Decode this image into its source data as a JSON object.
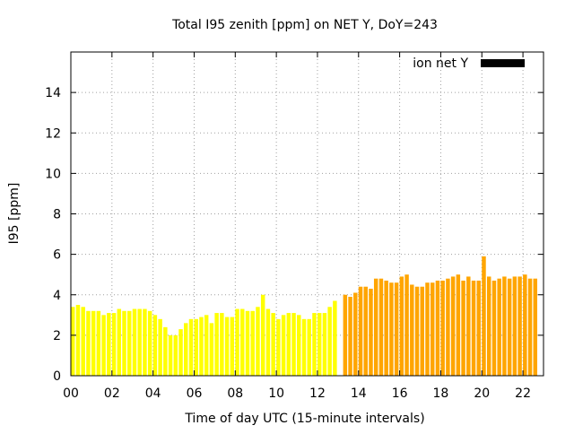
{
  "chart_data": {
    "type": "bar",
    "title": "Total I95 zenith [ppm] on NET Y, DoY=243",
    "xlabel": "Time of day UTC (15-minute intervals)",
    "ylabel": "I95 [ppm]",
    "legend": {
      "label": "ion net Y",
      "color": "#000000",
      "placement": "top-right"
    },
    "grid": true,
    "xlim": [
      0,
      23
    ],
    "ylim": [
      0,
      16
    ],
    "x_ticks": [
      "00",
      "02",
      "04",
      "06",
      "08",
      "10",
      "12",
      "14",
      "16",
      "18",
      "20",
      "22"
    ],
    "y_ticks": [
      "0",
      "2",
      "4",
      "6",
      "8",
      "10",
      "12",
      "14"
    ],
    "interval_hours": 0.25,
    "series": [
      {
        "color": "#ffff00",
        "x_start": 0,
        "values": [
          3.4,
          3.5,
          3.4,
          3.2,
          3.2,
          3.2,
          3.0,
          3.1,
          3.1,
          3.3,
          3.2,
          3.2,
          3.3,
          3.3,
          3.3,
          3.2,
          3.0,
          2.8,
          2.4,
          2.0,
          2.0,
          2.3,
          2.6,
          2.8,
          2.8,
          2.9,
          3.0,
          2.6,
          3.1,
          3.1,
          2.9,
          2.9,
          3.3,
          3.3,
          3.2,
          3.2,
          3.4,
          4.0,
          3.3,
          3.1,
          2.8,
          3.0,
          3.1,
          3.1,
          3.0,
          2.8,
          2.8,
          3.1,
          3.1,
          3.1,
          3.4,
          3.7
        ]
      },
      {
        "color": "#ffa500",
        "x_start": 13.25,
        "values": [
          4.0,
          3.9,
          4.1,
          4.4,
          4.4,
          4.3,
          4.8,
          4.8,
          4.7,
          4.6,
          4.6,
          4.9,
          5.0,
          4.5,
          4.4,
          4.4,
          4.6,
          4.6,
          4.7,
          4.7,
          4.8,
          4.9,
          5.0,
          4.7,
          4.9,
          4.7,
          4.7,
          5.9,
          4.9,
          4.7,
          4.8,
          4.9,
          4.8,
          4.9,
          4.9,
          5.0,
          4.8,
          4.8
        ]
      }
    ]
  }
}
